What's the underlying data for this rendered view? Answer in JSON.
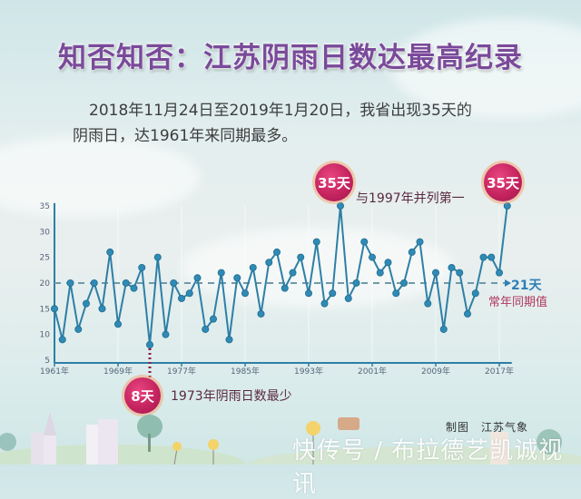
{
  "header": {
    "title": "知否知否：江苏阴雨日数达最高纪录",
    "intro_line1": "2018年11月24日至2019年1月20日，我省出现35天的",
    "intro_line2": "阴雨日，达1961年来同期最多。"
  },
  "annotations": {
    "max_1997_badge": "35天",
    "max_1997_text": "与1997年并列第一",
    "max_2018_badge": "35天",
    "min_1973_badge": "8天",
    "min_1973_text": "1973年阴雨日数最少",
    "average_value": "21天",
    "average_label": "常年同期值"
  },
  "footer": {
    "credit": "制图　江苏气象",
    "watermark": "快传号 / 布拉德艺凯诚视讯"
  },
  "colors": {
    "title": "#7a4a9a",
    "line": "#2e7fa6",
    "marker": "#2f8ab5",
    "average_line": "#6f9aa8",
    "balloon": "#c5245f",
    "annotation_text": "#5a2a3e",
    "average_text": "#2f7fb4"
  },
  "chart_data": {
    "type": "line",
    "title": "江苏阴雨日数（11月24日至1月20日同期）",
    "xlabel": "",
    "ylabel": "",
    "x": [
      1961,
      1962,
      1963,
      1964,
      1965,
      1966,
      1967,
      1968,
      1969,
      1970,
      1971,
      1972,
      1973,
      1974,
      1975,
      1976,
      1977,
      1978,
      1979,
      1980,
      1981,
      1982,
      1983,
      1984,
      1985,
      1986,
      1987,
      1988,
      1989,
      1990,
      1991,
      1992,
      1993,
      1994,
      1995,
      1996,
      1997,
      1998,
      1999,
      2000,
      2001,
      2002,
      2003,
      2004,
      2005,
      2006,
      2007,
      2008,
      2009,
      2010,
      2011,
      2012,
      2013,
      2014,
      2015,
      2016,
      2017,
      2018
    ],
    "series": [
      {
        "name": "阴雨日数",
        "values": [
          15,
          9,
          20,
          11,
          16,
          20,
          15,
          26,
          12,
          20,
          19,
          23,
          8,
          25,
          10,
          20,
          17,
          18,
          21,
          11,
          13,
          22,
          9,
          21,
          18,
          23,
          14,
          24,
          26,
          19,
          22,
          25,
          18,
          28,
          16,
          18,
          35,
          17,
          20,
          28,
          25,
          22,
          24,
          18,
          20,
          26,
          28,
          16,
          22,
          11,
          23,
          22,
          14,
          18,
          25,
          25,
          22,
          35
        ]
      }
    ],
    "reference_line": {
      "value": 21,
      "label": "常年同期值",
      "style": "dashed"
    },
    "xticks": [
      "1961年",
      "1969年",
      "1977年",
      "1985年",
      "1993年",
      "2001年",
      "2009年",
      "2017年"
    ],
    "yticks": [
      5,
      10,
      15,
      20,
      25,
      30,
      35
    ],
    "ylim": [
      5,
      35
    ],
    "grid": false,
    "legend": "none"
  }
}
